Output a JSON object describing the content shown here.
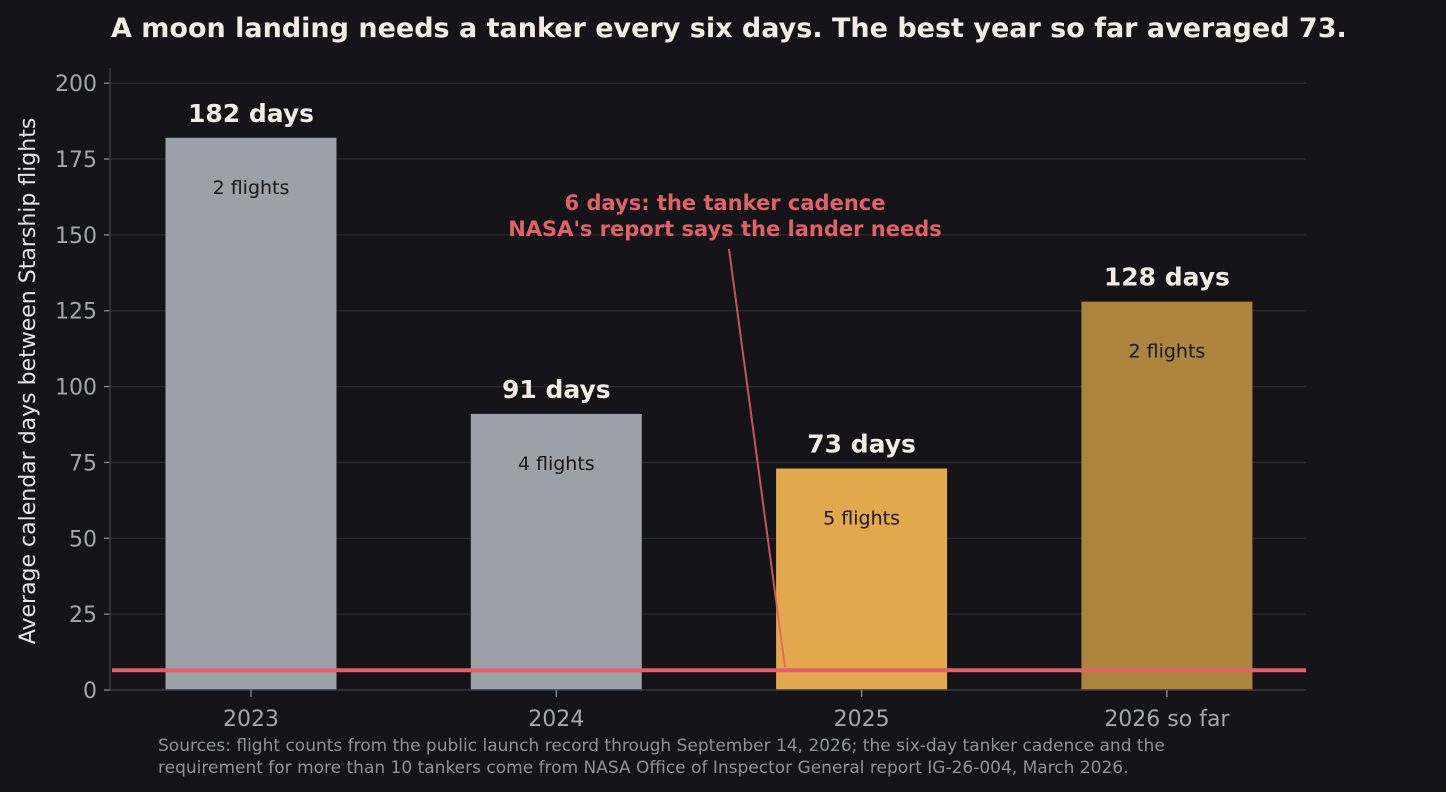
{
  "chart_data": {
    "type": "bar",
    "title": "A moon landing needs a tanker every six days. The best year so far averaged 73.",
    "ylabel": "Average calendar days between Starship flights",
    "xlabel": "",
    "ylim": [
      0,
      205
    ],
    "yticks": [
      0,
      25,
      50,
      75,
      100,
      125,
      150,
      175,
      200
    ],
    "grid": true,
    "categories": [
      "2023",
      "2024",
      "2025",
      "2026 so far"
    ],
    "values": [
      182,
      91,
      73,
      128
    ],
    "value_labels": [
      "182 days",
      "91 days",
      "73 days",
      "128 days"
    ],
    "flight_labels": [
      "2 flights",
      "4 flights",
      "5 flights",
      "2 flights"
    ],
    "bar_colors": [
      "#9ca0a8",
      "#9ca0a8",
      "#e2a84c",
      "#ad843e"
    ],
    "reference_line": {
      "value": 6.5,
      "color": "#e26068",
      "annotation": [
        "6 days: the tanker cadence",
        "NASA's report says the lander needs"
      ],
      "annotation_anchor_x": 2.05
    },
    "source_note": [
      "Sources: flight counts from the public launch record through September 14, 2026; the six-day tanker cadence and the",
      "requirement for more than 10 tankers come from NASA Office of Inspector General report IG-26-004, March 2026."
    ]
  }
}
